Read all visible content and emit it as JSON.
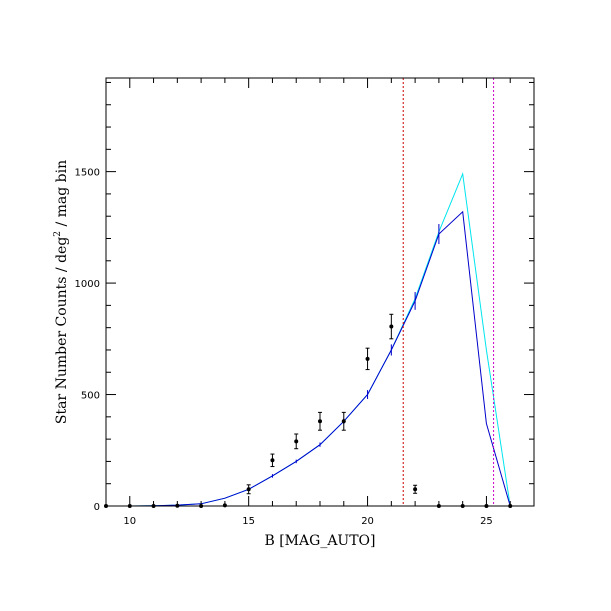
{
  "chart_data": {
    "type": "line",
    "xlabel": "B [MAG_AUTO]",
    "ylabel_main": "Star Number Counts / deg",
    "ylabel_sup": "2",
    "ylabel_tail": " / mag bin",
    "xlim": [
      9,
      27
    ],
    "ylim": [
      0,
      1920
    ],
    "x_ticks": [
      10,
      15,
      20,
      25
    ],
    "y_ticks": [
      0,
      500,
      1000,
      1500
    ],
    "x_minor_step": 1,
    "y_minor_step": 100,
    "grid": false,
    "series": [
      {
        "kind": "model",
        "color": "#00e5ee",
        "points": [
          [
            9,
            0
          ],
          [
            10,
            0
          ],
          [
            11,
            1
          ],
          [
            12,
            4
          ],
          [
            13,
            10
          ],
          [
            14,
            35
          ],
          [
            15,
            75
          ],
          [
            16,
            135
          ],
          [
            17,
            200
          ],
          [
            18,
            275
          ],
          [
            19,
            380
          ],
          [
            20,
            500
          ],
          [
            21,
            700
          ],
          [
            22,
            930
          ],
          [
            23,
            1230
          ],
          [
            24,
            1490
          ],
          [
            25,
            700
          ],
          [
            26,
            0
          ]
        ]
      },
      {
        "kind": "model",
        "color": "#0000cc",
        "points": [
          [
            9,
            0
          ],
          [
            10,
            0
          ],
          [
            11,
            1
          ],
          [
            12,
            4
          ],
          [
            13,
            10
          ],
          [
            14,
            35
          ],
          [
            15,
            75
          ],
          [
            16,
            135
          ],
          [
            17,
            200
          ],
          [
            18,
            275
          ],
          [
            19,
            380
          ],
          [
            20,
            500
          ],
          [
            21,
            700
          ],
          [
            22,
            920
          ],
          [
            23,
            1220
          ],
          [
            24,
            1320
          ],
          [
            25,
            370
          ],
          [
            26,
            0
          ]
        ]
      }
    ],
    "model_errorbars": {
      "color": "#0000cc",
      "points": [
        [
          15,
          75,
          6
        ],
        [
          16,
          135,
          8
        ],
        [
          17,
          200,
          8
        ],
        [
          18,
          275,
          10
        ],
        [
          19,
          380,
          12
        ],
        [
          20,
          500,
          20
        ],
        [
          21,
          700,
          25
        ],
        [
          22,
          920,
          40
        ],
        [
          23,
          1220,
          45
        ]
      ]
    },
    "observed": {
      "color": "#000000",
      "points": [
        [
          9,
          0,
          0
        ],
        [
          10,
          0,
          0
        ],
        [
          11,
          0,
          0
        ],
        [
          12,
          1,
          0
        ],
        [
          13,
          0,
          0
        ],
        [
          14,
          3,
          0
        ],
        [
          15,
          75,
          20
        ],
        [
          16,
          205,
          28
        ],
        [
          17,
          290,
          33
        ],
        [
          18,
          380,
          40
        ],
        [
          19,
          380,
          40
        ],
        [
          20,
          660,
          48
        ],
        [
          21,
          805,
          55
        ],
        [
          22,
          75,
          18
        ],
        [
          23,
          0,
          0
        ],
        [
          24,
          0,
          0
        ],
        [
          25,
          0,
          0
        ],
        [
          26,
          0,
          0
        ]
      ]
    },
    "vlines": [
      {
        "x": 21.5,
        "color": "#cc0000"
      },
      {
        "x": 25.3,
        "color": "#cc00cc"
      }
    ]
  }
}
